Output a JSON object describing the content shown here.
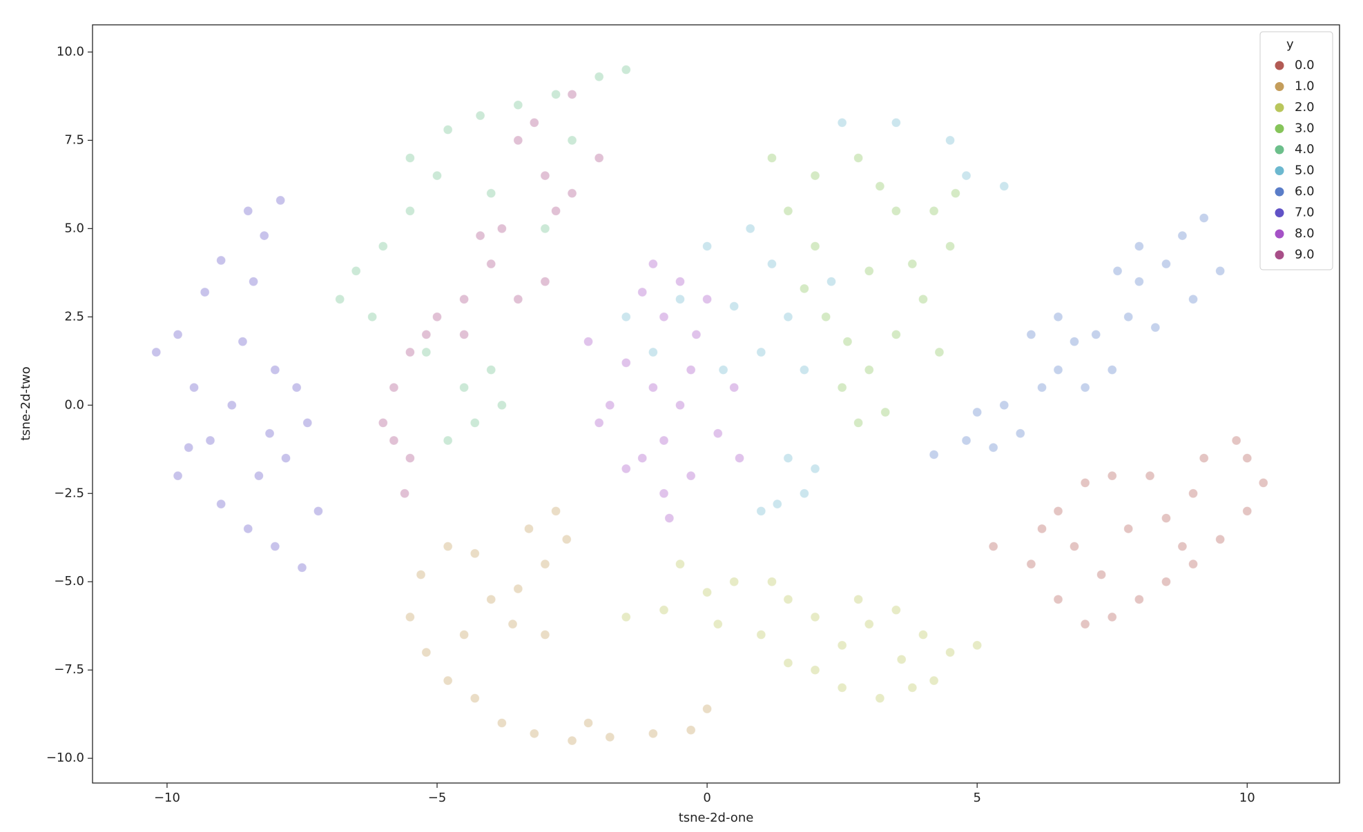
{
  "chart_data": {
    "type": "scatter",
    "xlabel": "tsne-2d-one",
    "ylabel": "tsne-2d-two",
    "xlim": [
      -11.38,
      11.71
    ],
    "ylim": [
      -10.7,
      10.77
    ],
    "xticks": [
      {
        "value": -10,
        "label": "−10"
      },
      {
        "value": -5,
        "label": "−5"
      },
      0,
      5,
      10
    ],
    "yticks": [
      {
        "value": -10,
        "label": "−10.0"
      },
      {
        "value": -7.5,
        "label": "−7.5"
      },
      {
        "value": -5,
        "label": "−5.0"
      },
      {
        "value": -2.5,
        "label": "−2.5"
      },
      {
        "value": 0,
        "label": "0.0"
      },
      2.5,
      {
        "value": 5,
        "label": "5.0"
      },
      7.5,
      {
        "value": 10,
        "label": "10.0"
      }
    ],
    "legend_title": "y",
    "legend": "upper right",
    "grid": false,
    "alpha": 0.35,
    "series": [
      {
        "name": "0.0",
        "color": "#b25a54",
        "x": [
          5.3,
          6.0,
          6.5,
          7.0,
          7.5,
          8.0,
          8.5,
          9.0,
          9.5,
          10.0,
          10.3,
          10.0,
          9.8,
          9.2,
          9.0,
          8.2,
          7.5,
          7.0,
          6.5,
          6.8,
          7.8,
          8.5,
          6.2,
          7.3,
          8.8
        ],
        "values": [
          -4.0,
          -4.5,
          -5.5,
          -6.2,
          -6.0,
          -5.5,
          -5.0,
          -4.5,
          -3.8,
          -3.0,
          -2.2,
          -1.5,
          -1.0,
          -1.5,
          -2.5,
          -2.0,
          -2.0,
          -2.2,
          -3.0,
          -4.0,
          -3.5,
          -3.2,
          -3.5,
          -4.8,
          -4.0
        ]
      },
      {
        "name": "1.0",
        "color": "#c49d5b",
        "x": [
          -2.8,
          -2.6,
          -3.0,
          -3.5,
          -4.0,
          -4.3,
          -4.8,
          -5.3,
          -5.5,
          -5.2,
          -4.8,
          -4.3,
          -3.8,
          -3.2,
          -2.5,
          -1.8,
          -1.0,
          -0.3,
          0.0,
          -3.0,
          -3.6,
          -2.2,
          -4.5,
          -3.3
        ],
        "values": [
          -3.0,
          -3.8,
          -4.5,
          -5.2,
          -5.5,
          -4.2,
          -4.0,
          -4.8,
          -6.0,
          -7.0,
          -7.8,
          -8.3,
          -9.0,
          -9.3,
          -9.5,
          -9.4,
          -9.3,
          -9.2,
          -8.6,
          -6.5,
          -6.2,
          -9.0,
          -6.5,
          -3.5
        ]
      },
      {
        "name": "2.0",
        "color": "#b9c65c",
        "x": [
          -1.5,
          -0.8,
          0,
          0.5,
          1.2,
          1.5,
          1.0,
          2.0,
          2.5,
          3.0,
          3.5,
          4.0,
          4.5,
          4.2,
          3.8,
          3.2,
          2.5,
          2.0,
          1.5,
          5.0,
          0.2,
          2.8,
          3.6,
          -0.5
        ],
        "values": [
          -6.0,
          -5.8,
          -5.3,
          -5.0,
          -5.0,
          -5.5,
          -6.5,
          -6.0,
          -6.8,
          -6.2,
          -5.8,
          -6.5,
          -7.0,
          -7.8,
          -8.0,
          -8.3,
          -8.0,
          -7.5,
          -7.3,
          -6.8,
          -6.2,
          -5.5,
          -7.2,
          -4.5
        ]
      },
      {
        "name": "3.0",
        "color": "#86c45a",
        "x": [
          2.0,
          2.8,
          3.2,
          3.5,
          4.2,
          4.5,
          4.0,
          3.5,
          3.0,
          2.5,
          2.8,
          2.2,
          2.0,
          1.5,
          3.8,
          4.6,
          3.0,
          2.6,
          1.8,
          3.3,
          4.3,
          1.2
        ],
        "values": [
          6.5,
          7.0,
          6.2,
          5.5,
          5.5,
          4.5,
          3.0,
          2.0,
          1.0,
          0.5,
          -0.5,
          2.5,
          4.5,
          5.5,
          4.0,
          6.0,
          3.8,
          1.8,
          3.3,
          -0.2,
          1.5,
          7.0
        ]
      },
      {
        "name": "4.0",
        "color": "#6cbf8b",
        "x": [
          -6.8,
          -6.5,
          -6.0,
          -5.5,
          -5.0,
          -4.8,
          -4.2,
          -3.5,
          -2.8,
          -2.0,
          -1.5,
          -5.5,
          -6.2,
          -4.5,
          -4.3,
          -4.8,
          -3.8,
          -4.0,
          -5.2,
          -3.0,
          -2.5,
          -4.0
        ],
        "values": [
          3.0,
          3.8,
          4.5,
          5.5,
          6.5,
          7.8,
          8.2,
          8.5,
          8.8,
          9.3,
          9.5,
          7.0,
          2.5,
          0.5,
          -0.5,
          -1.0,
          0.0,
          1.0,
          1.5,
          5.0,
          7.5,
          6.0
        ]
      },
      {
        "name": "5.0",
        "color": "#6cb8cf",
        "x": [
          0.8,
          1.2,
          0.5,
          1.5,
          1.0,
          0.3,
          1.8,
          1.5,
          1.8,
          1.3,
          2.0,
          3.5,
          4.5,
          4.8,
          2.5,
          -0.5,
          -1.5,
          2.3,
          5.5,
          0.0,
          -1.0,
          1.0
        ],
        "values": [
          5.0,
          4.0,
          2.8,
          2.5,
          1.5,
          1.0,
          1.0,
          -1.5,
          -2.5,
          -2.8,
          -1.8,
          8.0,
          7.5,
          6.5,
          8.0,
          3.0,
          2.5,
          3.5,
          6.2,
          4.5,
          1.5,
          -3.0
        ]
      },
      {
        "name": "6.0",
        "color": "#5a7dc8",
        "x": [
          4.2,
          4.8,
          5.0,
          5.5,
          5.8,
          6.2,
          6.5,
          6.8,
          6.5,
          7.2,
          7.5,
          7.8,
          8.0,
          8.5,
          8.8,
          9.2,
          9.0,
          8.3,
          7.6,
          6.0,
          5.3,
          7.0,
          9.5,
          8.0
        ],
        "values": [
          -1.4,
          -1.0,
          -0.2,
          0.0,
          -0.8,
          0.5,
          1.0,
          1.8,
          2.5,
          2.0,
          1.0,
          2.5,
          3.5,
          4.0,
          4.8,
          5.3,
          3.0,
          2.2,
          3.8,
          2.0,
          -1.2,
          0.5,
          3.8,
          4.5
        ]
      },
      {
        "name": "7.0",
        "color": "#6152c6",
        "x": [
          -8.5,
          -8.2,
          -7.9,
          -9.0,
          -9.8,
          -10.2,
          -9.5,
          -9.2,
          -9.8,
          -9.0,
          -8.5,
          -8.0,
          -7.5,
          -8.3,
          -8.8,
          -8.0,
          -7.6,
          -7.4,
          -7.8,
          -8.6,
          -9.3,
          -8.4,
          -7.2,
          -9.6,
          -8.1
        ],
        "values": [
          5.5,
          4.8,
          5.8,
          4.1,
          2.0,
          1.5,
          0.5,
          -1.0,
          -2.0,
          -2.8,
          -3.5,
          -4.0,
          -4.6,
          -2.0,
          0.0,
          1.0,
          0.5,
          -0.5,
          -1.5,
          1.8,
          3.2,
          3.5,
          -3.0,
          -1.2,
          -0.8
        ]
      },
      {
        "name": "8.0",
        "color": "#a552c6",
        "x": [
          -1.0,
          -0.5,
          -0.8,
          -0.2,
          -1.5,
          -1.0,
          -0.5,
          -1.8,
          -0.8,
          -1.2,
          -0.8,
          -0.7,
          -0.3,
          0.2,
          0.5,
          -2.0,
          -1.5,
          0.0,
          -0.3,
          -2.2,
          -1.2,
          0.6
        ],
        "values": [
          4.0,
          3.5,
          2.5,
          2.0,
          1.2,
          0.5,
          0.0,
          0.0,
          -1.0,
          -1.5,
          -2.5,
          -3.2,
          -2.0,
          -0.8,
          0.5,
          -0.5,
          -1.8,
          3.0,
          1.0,
          1.8,
          3.2,
          -1.5
        ]
      },
      {
        "name": "9.0",
        "color": "#a84e88",
        "x": [
          -3.5,
          -3.0,
          -2.8,
          -2.5,
          -3.8,
          -4.0,
          -4.5,
          -5.0,
          -5.5,
          -5.8,
          -6.0,
          -5.5,
          -5.8,
          -4.5,
          -3.5,
          -2.0,
          -3.2,
          -4.2,
          -5.2,
          -5.6,
          -2.5,
          -3.0
        ],
        "values": [
          7.5,
          6.5,
          5.5,
          6.0,
          5.0,
          4.0,
          3.0,
          2.5,
          1.5,
          0.5,
          -0.5,
          -1.5,
          -1.0,
          2.0,
          3.0,
          7.0,
          8.0,
          4.8,
          2.0,
          -2.5,
          8.8,
          3.5
        ]
      }
    ]
  }
}
